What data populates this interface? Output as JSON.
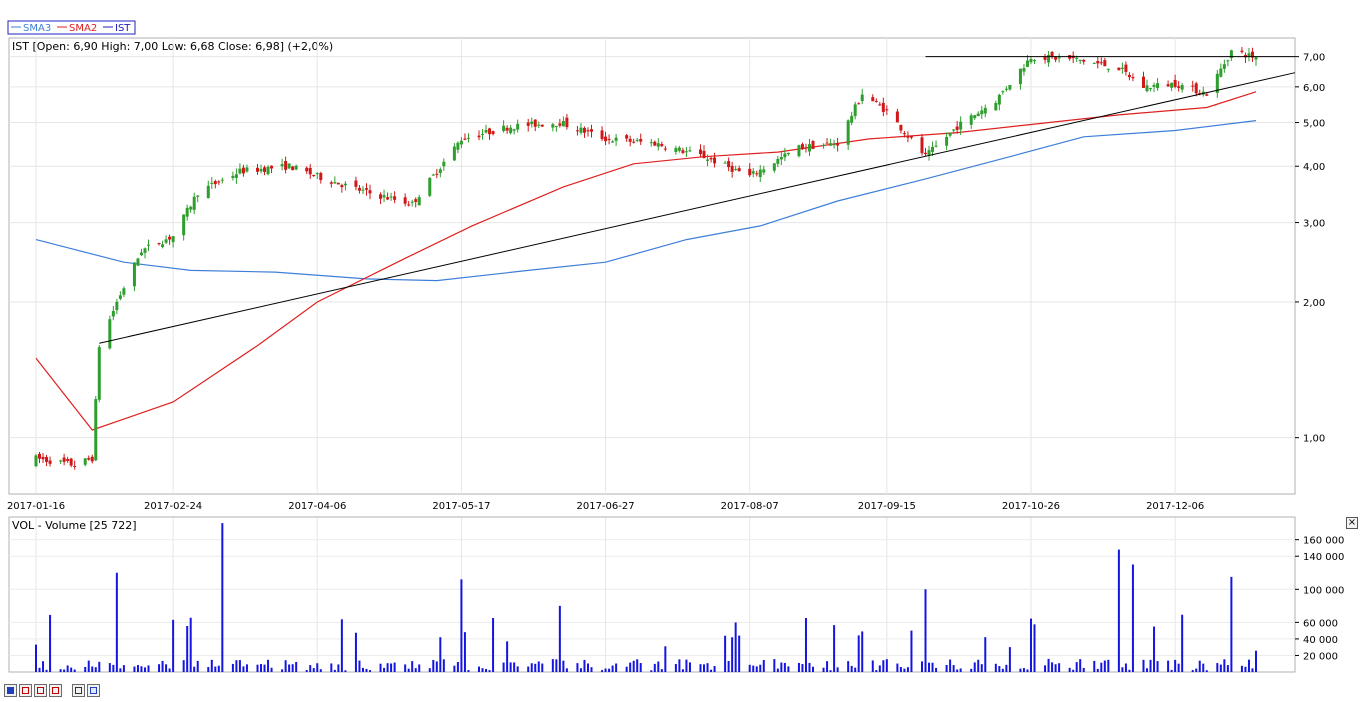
{
  "legend": [
    {
      "name": "SMA3",
      "color": "#3e7fd8"
    },
    {
      "name": "SMA2",
      "color": "#e02020"
    },
    {
      "name": "IST",
      "color": "#2020c0"
    }
  ],
  "price_header": "IST [Open: 6,90  High: 7,00  Low: 6,68  Close: 6,98] (+2,0%)",
  "volume_header": "VOL - Volume [25 722]",
  "colors": {
    "up": "#2e9e2e",
    "down": "#d01818",
    "volume": "#1515e0",
    "trendline": "#000000",
    "sma_long": "#3e7fd8",
    "sma_short": "#e02020"
  },
  "chart_data": [
    {
      "type": "candlestick",
      "yscale": "log",
      "ylim": [
        0.75,
        7.7
      ],
      "yticks": [
        "1,00",
        "2,00",
        "3,00",
        "4,00",
        "5,00",
        "6,00",
        "7,00"
      ],
      "ytick_values": [
        1,
        2,
        3,
        4,
        5,
        6,
        7
      ],
      "xticks": [
        "2017-01-16",
        "2017-02-24",
        "2017-04-06",
        "2017-05-17",
        "2017-06-27",
        "2017-08-07",
        "2017-09-15",
        "2017-10-26",
        "2017-12-06"
      ],
      "close_path": [
        {
          "x": "2017-01-16",
          "y": 0.9
        },
        {
          "x": "2017-01-27",
          "y": 0.87
        },
        {
          "x": "2017-02-01",
          "y": 0.9
        },
        {
          "x": "2017-02-03",
          "y": 1.6
        },
        {
          "x": "2017-02-08",
          "y": 2.0
        },
        {
          "x": "2017-02-15",
          "y": 2.6
        },
        {
          "x": "2017-02-24",
          "y": 2.8
        },
        {
          "x": "2017-03-03",
          "y": 3.5
        },
        {
          "x": "2017-03-15",
          "y": 3.9
        },
        {
          "x": "2017-03-29",
          "y": 4.0
        },
        {
          "x": "2017-04-06",
          "y": 3.8
        },
        {
          "x": "2017-04-20",
          "y": 3.5
        },
        {
          "x": "2017-05-03",
          "y": 3.3
        },
        {
          "x": "2017-05-17",
          "y": 4.6
        },
        {
          "x": "2017-05-31",
          "y": 4.9
        },
        {
          "x": "2017-06-14",
          "y": 5.0
        },
        {
          "x": "2017-06-27",
          "y": 4.6
        },
        {
          "x": "2017-07-11",
          "y": 4.5
        },
        {
          "x": "2017-07-25",
          "y": 4.2
        },
        {
          "x": "2017-08-07",
          "y": 3.8
        },
        {
          "x": "2017-08-21",
          "y": 4.4
        },
        {
          "x": "2017-09-01",
          "y": 4.5
        },
        {
          "x": "2017-09-08",
          "y": 5.8
        },
        {
          "x": "2017-09-15",
          "y": 5.3
        },
        {
          "x": "2017-09-26",
          "y": 4.2
        },
        {
          "x": "2017-10-05",
          "y": 4.9
        },
        {
          "x": "2017-10-16",
          "y": 5.6
        },
        {
          "x": "2017-10-26",
          "y": 7.0
        },
        {
          "x": "2017-11-08",
          "y": 6.9
        },
        {
          "x": "2017-11-20",
          "y": 6.6
        },
        {
          "x": "2017-11-27",
          "y": 6.0
        },
        {
          "x": "2017-12-06",
          "y": 6.1
        },
        {
          "x": "2017-12-15",
          "y": 5.8
        },
        {
          "x": "2017-12-22",
          "y": 7.2
        },
        {
          "x": "2017-12-29",
          "y": 6.98
        }
      ],
      "last_bar": {
        "open": 6.9,
        "high": 7.0,
        "low": 6.68,
        "close": 6.98
      },
      "sma_long": [
        {
          "x": "2017-01-16",
          "y": 2.75
        },
        {
          "x": "2017-02-10",
          "y": 2.45
        },
        {
          "x": "2017-03-01",
          "y": 2.35
        },
        {
          "x": "2017-03-25",
          "y": 2.33
        },
        {
          "x": "2017-04-20",
          "y": 2.25
        },
        {
          "x": "2017-05-10",
          "y": 2.23
        },
        {
          "x": "2017-06-05",
          "y": 2.35
        },
        {
          "x": "2017-06-27",
          "y": 2.45
        },
        {
          "x": "2017-07-20",
          "y": 2.75
        },
        {
          "x": "2017-08-10",
          "y": 2.95
        },
        {
          "x": "2017-09-01",
          "y": 3.35
        },
        {
          "x": "2017-09-26",
          "y": 3.75
        },
        {
          "x": "2017-10-20",
          "y": 4.2
        },
        {
          "x": "2017-11-10",
          "y": 4.65
        },
        {
          "x": "2017-12-06",
          "y": 4.8
        },
        {
          "x": "2017-12-29",
          "y": 5.05
        }
      ],
      "sma_short": [
        {
          "x": "2017-01-16",
          "y": 1.5
        },
        {
          "x": "2017-02-01",
          "y": 1.04
        },
        {
          "x": "2017-02-24",
          "y": 1.2
        },
        {
          "x": "2017-03-20",
          "y": 1.6
        },
        {
          "x": "2017-04-06",
          "y": 2.0
        },
        {
          "x": "2017-05-01",
          "y": 2.5
        },
        {
          "x": "2017-05-20",
          "y": 2.95
        },
        {
          "x": "2017-06-15",
          "y": 3.6
        },
        {
          "x": "2017-07-05",
          "y": 4.05
        },
        {
          "x": "2017-07-25",
          "y": 4.2
        },
        {
          "x": "2017-08-15",
          "y": 4.3
        },
        {
          "x": "2017-09-10",
          "y": 4.6
        },
        {
          "x": "2017-10-05",
          "y": 4.75
        },
        {
          "x": "2017-10-26",
          "y": 4.95
        },
        {
          "x": "2017-11-20",
          "y": 5.2
        },
        {
          "x": "2017-12-15",
          "y": 5.4
        },
        {
          "x": "2017-12-29",
          "y": 5.85
        }
      ],
      "trendlines": [
        {
          "x1": "2017-02-03",
          "y1": 1.62,
          "x2": "2017-12-31",
          "y2": 6.45
        },
        {
          "x1": "2017-09-26",
          "y1": 7.0,
          "x2": "2017-12-31",
          "y2": 7.0
        }
      ]
    },
    {
      "type": "bar",
      "title": "VOL - Volume [25 722]",
      "yticks": [
        "20 000",
        "40 000",
        "60 000",
        "100 000",
        "140 000",
        "160 000"
      ],
      "ytick_values": [
        20000,
        40000,
        60000,
        100000,
        140000,
        160000
      ],
      "ylim": [
        0,
        185000
      ],
      "peaks": [
        {
          "x": "2017-02-08",
          "value": 120000
        },
        {
          "x": "2017-03-10",
          "value": 180000
        },
        {
          "x": "2017-05-17",
          "value": 112000
        },
        {
          "x": "2017-06-14",
          "value": 80000
        },
        {
          "x": "2017-09-26",
          "value": 100000
        },
        {
          "x": "2017-11-20",
          "value": 148000
        },
        {
          "x": "2017-11-24",
          "value": 130000
        },
        {
          "x": "2017-12-22",
          "value": 115000
        }
      ],
      "last_value": 25722
    }
  ]
}
